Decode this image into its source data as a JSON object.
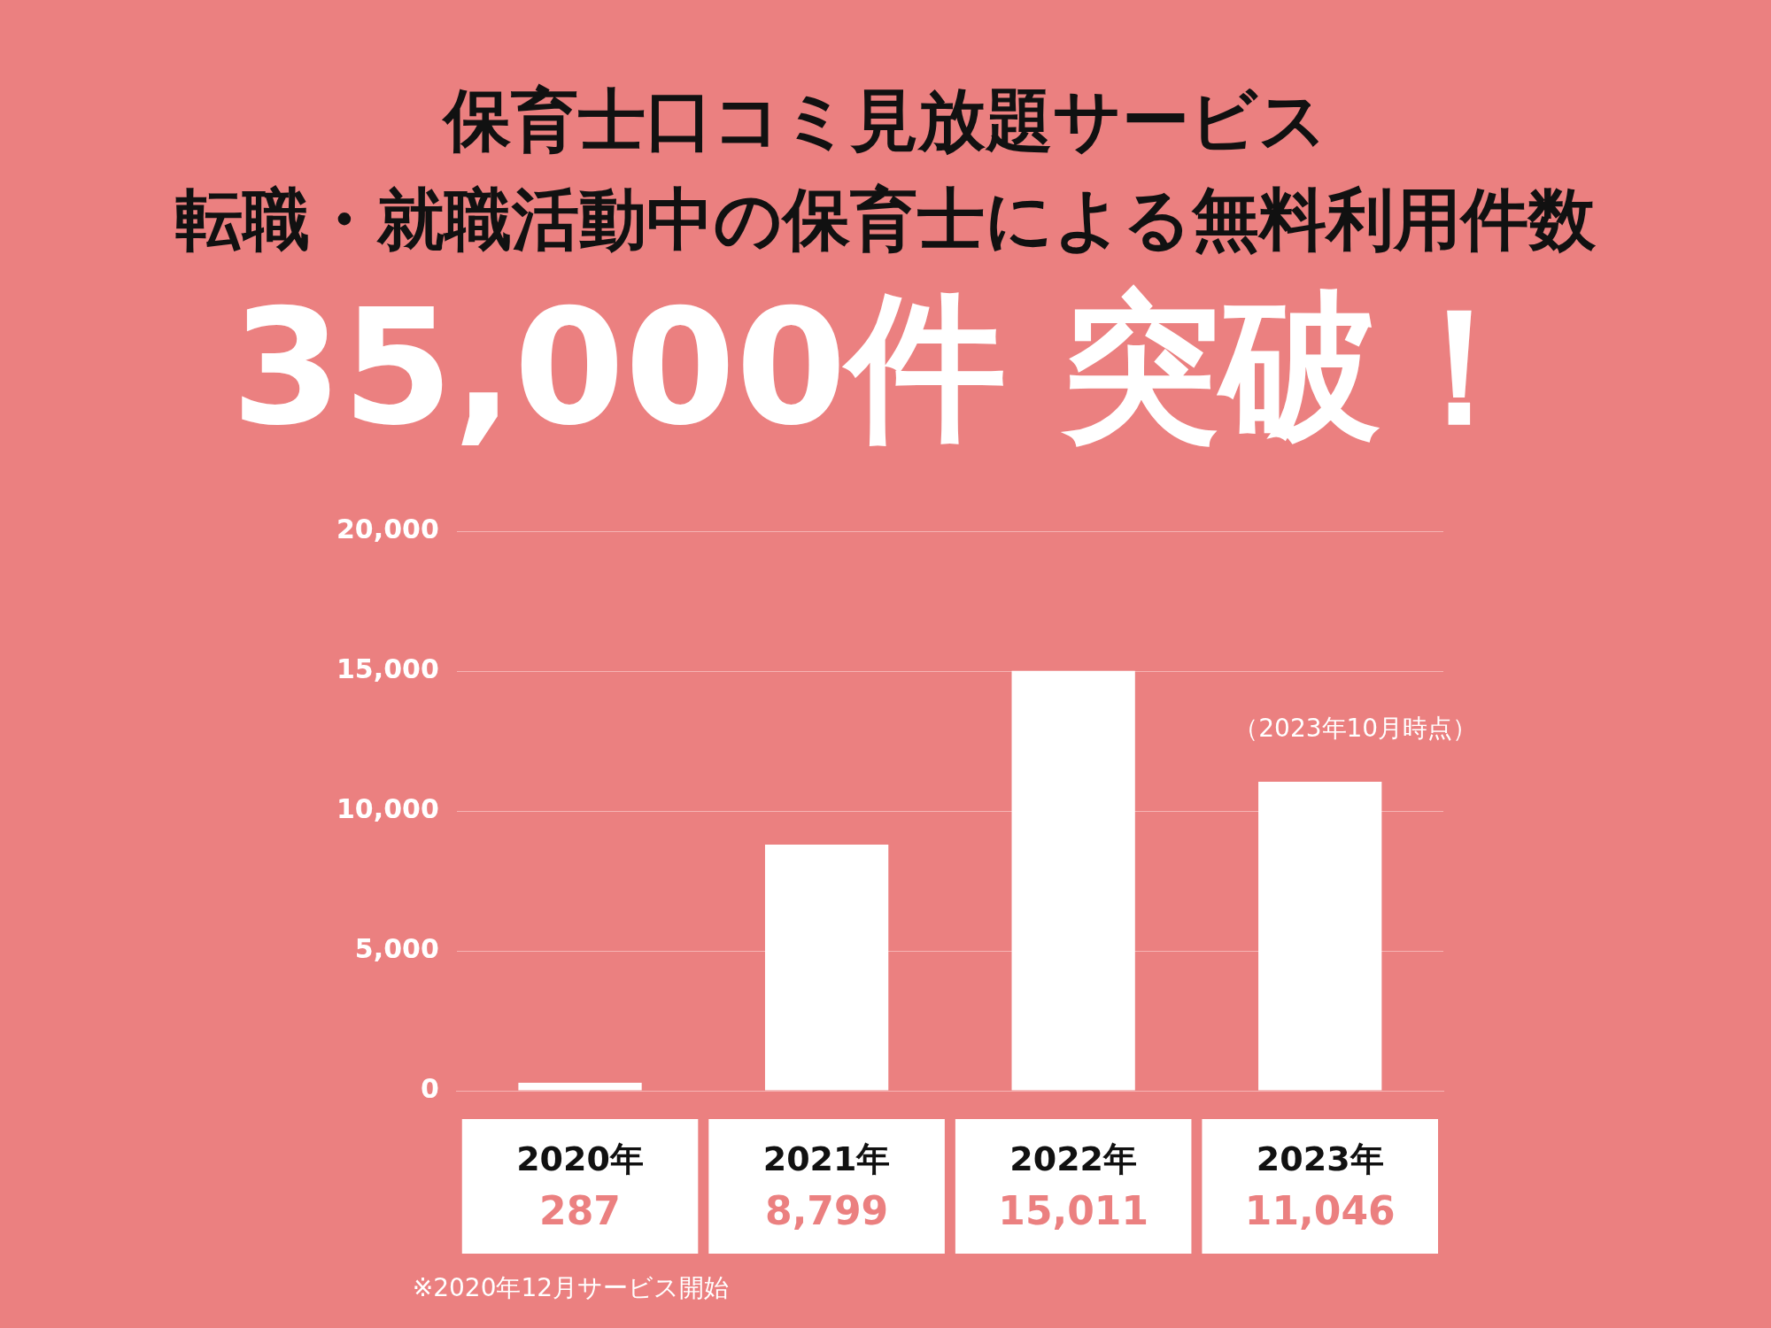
{
  "chart_data": {
    "type": "bar",
    "title": "保育士口コミ見放題サービス",
    "subtitle": "転職・就職活動中の保育士による無料利用件数",
    "categories": [
      "2020年",
      "2021年",
      "2022年",
      "2023年"
    ],
    "values": [
      287,
      8799,
      15011,
      11046
    ],
    "color": "#ffffff",
    "ylim": [
      0,
      20000
    ],
    "yticks": [
      0,
      {
        "value": 5000,
        "label": "5,000"
      },
      {
        "value": 10000,
        "label": "10,000"
      },
      {
        "value": 15000,
        "label": "15,000"
      },
      {
        "value": 20000,
        "label": "20,000"
      }
    ],
    "value_labels": [
      "287",
      "8,799",
      "15,011",
      "11,046"
    ],
    "grid": "y",
    "legend": false,
    "annotations": [
      "35,000件 突破！",
      {
        "text": "（2023年10月時点）",
        "x": "2023年",
        "y": 11046
      },
      "※2020年12月サービス開始"
    ]
  }
}
